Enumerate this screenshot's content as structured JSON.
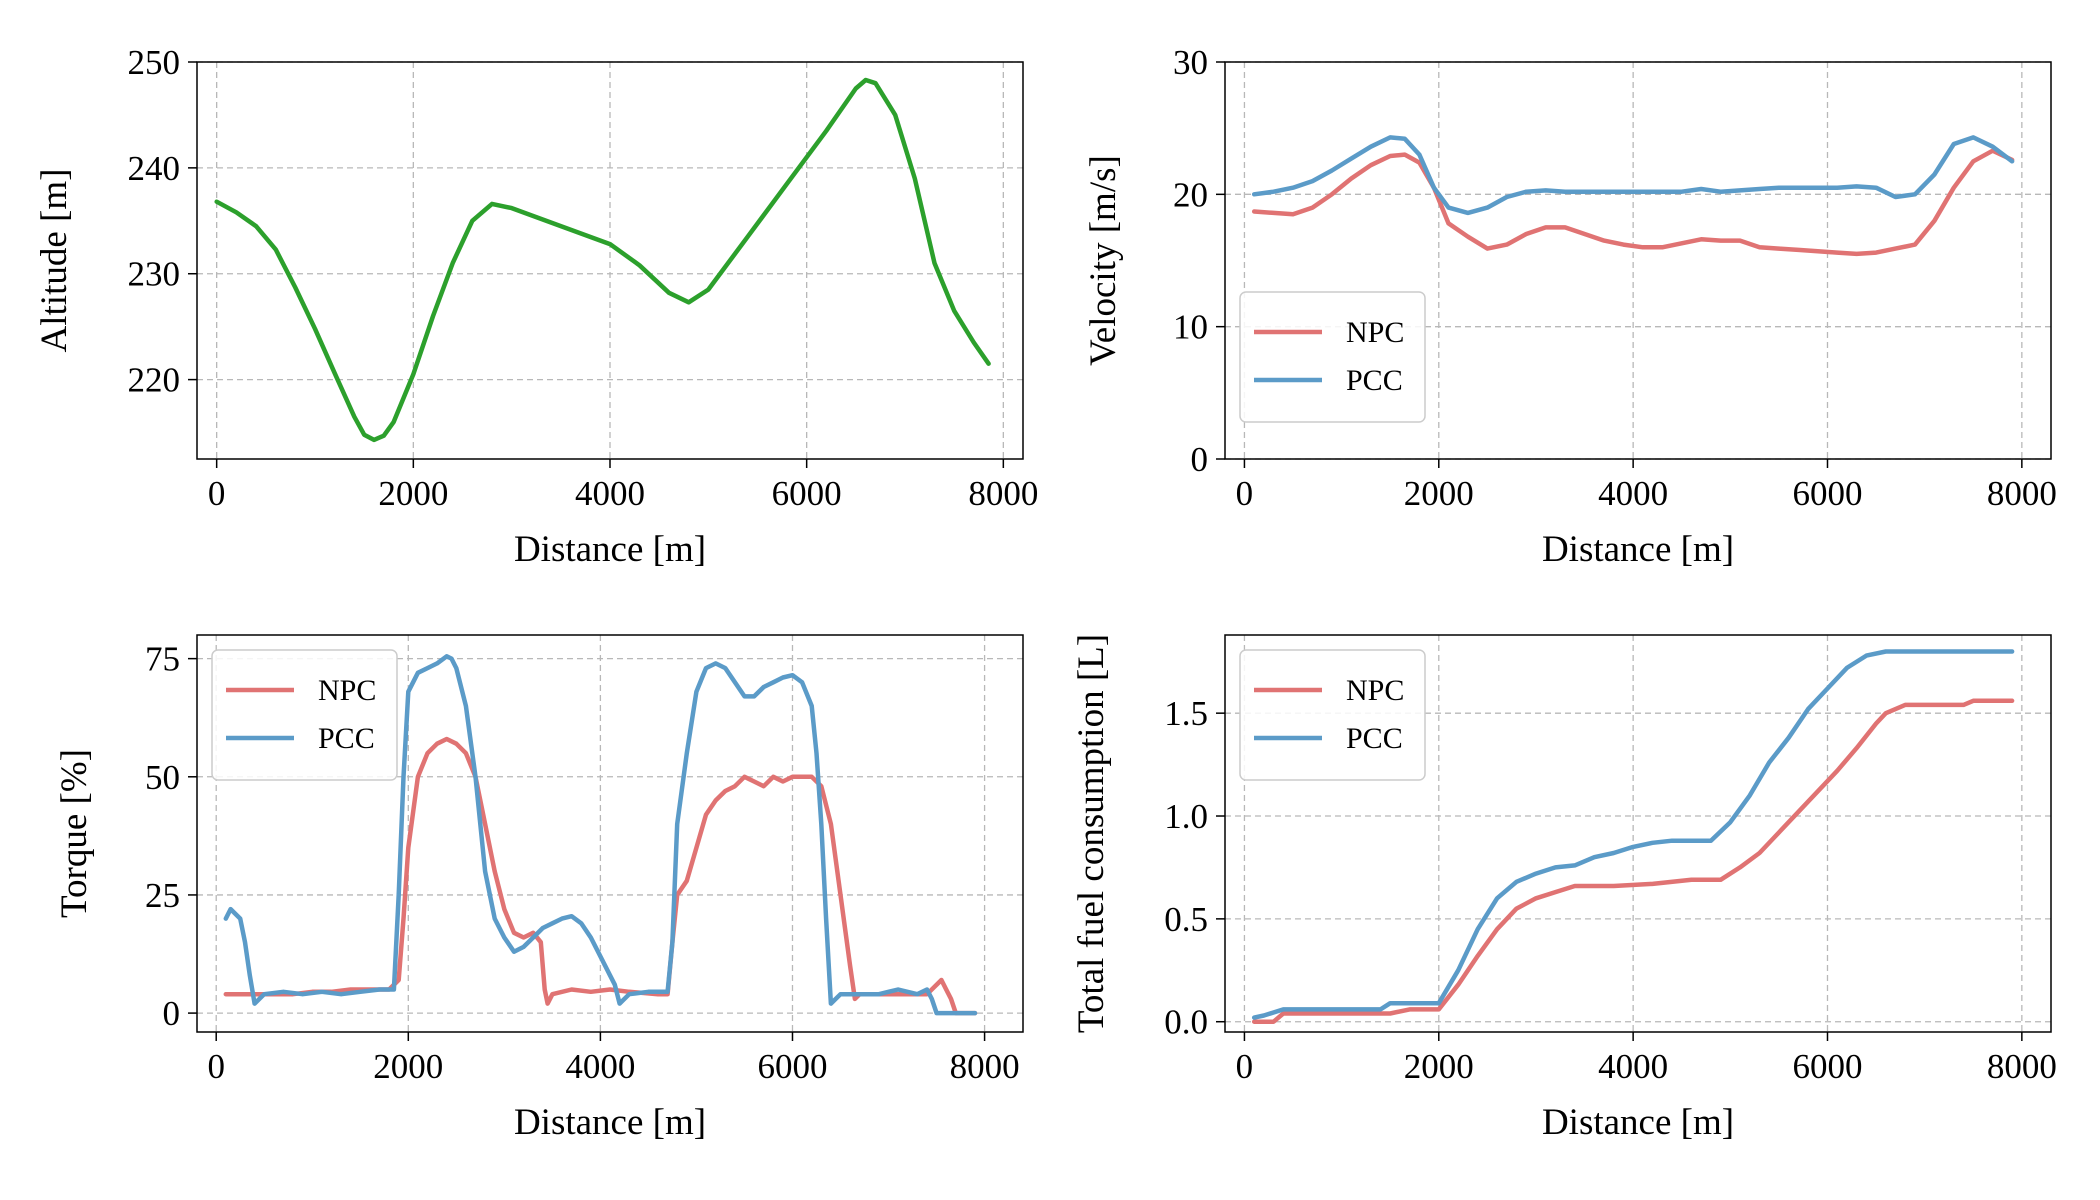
{
  "colors": {
    "altitude": "#2ca02c",
    "npc": "#e07373",
    "pcc": "#5b9bc8",
    "grid": "#b8b8b8"
  },
  "chart_data": [
    {
      "id": "altitude",
      "type": "line",
      "xlabel": "Distance [m]",
      "ylabel": "Altitude [m]",
      "xlim": [
        -200,
        8200
      ],
      "ylim": [
        212.5,
        250
      ],
      "xticks": [
        0,
        2000,
        4000,
        6000,
        8000
      ],
      "yticks": [
        220,
        230,
        240,
        250
      ],
      "xtick_labels": [
        "0",
        "2000",
        "4000",
        "6000",
        "8000"
      ],
      "ytick_labels": [
        "220",
        "230",
        "240",
        "250"
      ],
      "grid": true,
      "legend": null,
      "series": [
        {
          "name": "Altitude",
          "color": "#2ca02c",
          "x": [
            0,
            200,
            400,
            600,
            800,
            1000,
            1200,
            1400,
            1500,
            1600,
            1700,
            1800,
            2000,
            2200,
            2400,
            2600,
            2800,
            3000,
            3500,
            4000,
            4300,
            4600,
            4800,
            5000,
            5400,
            5800,
            6200,
            6500,
            6600,
            6700,
            6900,
            7100,
            7300,
            7500,
            7700,
            7850
          ],
          "y": [
            236.8,
            235.8,
            234.5,
            232.3,
            228.7,
            224.8,
            220.6,
            216.5,
            214.8,
            214.3,
            214.7,
            216.0,
            220.5,
            226.0,
            231.0,
            235.0,
            236.6,
            236.2,
            234.5,
            232.8,
            230.8,
            228.2,
            227.3,
            228.5,
            233.5,
            238.5,
            243.5,
            247.5,
            248.3,
            248.0,
            245.0,
            239.0,
            231.0,
            226.5,
            223.5,
            221.5
          ]
        }
      ]
    },
    {
      "id": "velocity",
      "type": "line",
      "xlabel": "Distance [m]",
      "ylabel": "Velocity [m/s]",
      "xlim": [
        -200,
        8300
      ],
      "ylim": [
        0,
        30
      ],
      "xticks": [
        0,
        2000,
        4000,
        6000,
        8000
      ],
      "yticks": [
        0,
        10,
        20,
        30
      ],
      "xtick_labels": [
        "0",
        "2000",
        "4000",
        "6000",
        "8000"
      ],
      "ytick_labels": [
        "0",
        "10",
        "20",
        "30"
      ],
      "grid": true,
      "legend": "lower-left",
      "series": [
        {
          "name": "NPC",
          "color": "#e07373",
          "x": [
            100,
            300,
            500,
            700,
            900,
            1100,
            1300,
            1500,
            1650,
            1800,
            1950,
            2100,
            2300,
            2500,
            2700,
            2900,
            3100,
            3300,
            3500,
            3700,
            3900,
            4100,
            4300,
            4500,
            4700,
            4900,
            5100,
            5300,
            5500,
            5700,
            5900,
            6100,
            6300,
            6500,
            6700,
            6900,
            7100,
            7300,
            7500,
            7700,
            7900
          ],
          "y": [
            18.7,
            18.6,
            18.5,
            19.0,
            20.0,
            21.2,
            22.2,
            22.9,
            23.0,
            22.4,
            20.5,
            17.8,
            16.8,
            15.9,
            16.2,
            17.0,
            17.5,
            17.5,
            17.0,
            16.5,
            16.2,
            16.0,
            16.0,
            16.3,
            16.6,
            16.5,
            16.5,
            16.0,
            15.9,
            15.8,
            15.7,
            15.6,
            15.5,
            15.6,
            15.9,
            16.2,
            18.0,
            20.5,
            22.5,
            23.3,
            22.6
          ]
        },
        {
          "name": "PCC",
          "color": "#5b9bc8",
          "x": [
            100,
            300,
            500,
            700,
            900,
            1100,
            1300,
            1500,
            1650,
            1800,
            1950,
            2100,
            2300,
            2500,
            2700,
            2900,
            3100,
            3300,
            3500,
            3700,
            3900,
            4100,
            4300,
            4500,
            4700,
            4900,
            5100,
            5300,
            5500,
            5700,
            5900,
            6100,
            6300,
            6500,
            6700,
            6900,
            7100,
            7300,
            7500,
            7700,
            7900
          ],
          "y": [
            20.0,
            20.2,
            20.5,
            21.0,
            21.8,
            22.7,
            23.6,
            24.3,
            24.2,
            23.0,
            20.5,
            19.0,
            18.6,
            19.0,
            19.8,
            20.2,
            20.3,
            20.2,
            20.2,
            20.2,
            20.2,
            20.2,
            20.2,
            20.2,
            20.4,
            20.2,
            20.3,
            20.4,
            20.5,
            20.5,
            20.5,
            20.5,
            20.6,
            20.5,
            19.8,
            20.0,
            21.5,
            23.8,
            24.3,
            23.6,
            22.5
          ]
        }
      ]
    },
    {
      "id": "torque",
      "type": "line",
      "xlabel": "Distance [m]",
      "ylabel": "Torque [%]",
      "xlim": [
        -200,
        8400
      ],
      "ylim": [
        -4,
        80
      ],
      "xticks": [
        0,
        2000,
        4000,
        6000,
        8000
      ],
      "yticks": [
        0,
        25,
        50,
        75
      ],
      "xtick_labels": [
        "0",
        "2000",
        "4000",
        "6000",
        "8000"
      ],
      "ytick_labels": [
        "0",
        "25",
        "50",
        "75"
      ],
      "grid": true,
      "legend": "upper-left",
      "series": [
        {
          "name": "NPC",
          "color": "#e07373",
          "x": [
            100,
            500,
            800,
            1000,
            1200,
            1400,
            1600,
            1800,
            1900,
            1950,
            2000,
            2100,
            2200,
            2300,
            2400,
            2500,
            2600,
            2700,
            2800,
            2900,
            3000,
            3100,
            3200,
            3300,
            3380,
            3420,
            3450,
            3500,
            3700,
            3900,
            4100,
            4300,
            4600,
            4700,
            4750,
            4800,
            4900,
            5000,
            5100,
            5200,
            5300,
            5400,
            5500,
            5600,
            5700,
            5800,
            5900,
            6000,
            6100,
            6200,
            6300,
            6400,
            6500,
            6600,
            6650,
            6700,
            6800,
            7000,
            7200,
            7400,
            7550,
            7600,
            7650,
            7700,
            7900
          ],
          "y": [
            4,
            4,
            4,
            4.5,
            4.5,
            5,
            5,
            5,
            7,
            20,
            35,
            50,
            55,
            57,
            58,
            57,
            55,
            50,
            40,
            30,
            22,
            17,
            16,
            17,
            15,
            5,
            2,
            4,
            5,
            4.5,
            5,
            4.5,
            4,
            4,
            15,
            25,
            28,
            35,
            42,
            45,
            47,
            48,
            50,
            49,
            48,
            50,
            49,
            50,
            50,
            50,
            48,
            40,
            25,
            10,
            3,
            4,
            4,
            4,
            4,
            4,
            7,
            5,
            3,
            0,
            0
          ]
        },
        {
          "name": "PCC",
          "color": "#5b9bc8",
          "x": [
            100,
            150,
            250,
            300,
            350,
            400,
            450,
            500,
            700,
            900,
            1100,
            1300,
            1500,
            1700,
            1850,
            1900,
            1950,
            2000,
            2100,
            2200,
            2300,
            2400,
            2450,
            2500,
            2600,
            2700,
            2800,
            2900,
            3000,
            3100,
            3200,
            3300,
            3400,
            3500,
            3600,
            3700,
            3800,
            3900,
            4000,
            4100,
            4150,
            4200,
            4300,
            4500,
            4700,
            4750,
            4800,
            4900,
            5000,
            5100,
            5200,
            5300,
            5400,
            5500,
            5600,
            5700,
            5800,
            5900,
            6000,
            6100,
            6200,
            6250,
            6300,
            6350,
            6400,
            6500,
            6700,
            6900,
            7100,
            7300,
            7400,
            7450,
            7500,
            7900
          ],
          "y": [
            20,
            22,
            20,
            15,
            8,
            2,
            3,
            4,
            4.5,
            4,
            4.5,
            4,
            4.5,
            5,
            5,
            25,
            50,
            68,
            72,
            73,
            74,
            75.5,
            75,
            73,
            65,
            50,
            30,
            20,
            16,
            13,
            14,
            16,
            18,
            19,
            20,
            20.5,
            19,
            16,
            12,
            8,
            6,
            2,
            4,
            4.5,
            4.5,
            15,
            40,
            55,
            68,
            73,
            74,
            73,
            70,
            67,
            67,
            69,
            70,
            71,
            71.5,
            70,
            65,
            55,
            40,
            20,
            2,
            4,
            4,
            4,
            5,
            4,
            5,
            3,
            0,
            0
          ]
        }
      ]
    },
    {
      "id": "fuel",
      "type": "line",
      "xlabel": "Distance [m]",
      "ylabel": "Total fuel consumption [L]",
      "xlim": [
        -200,
        8300
      ],
      "ylim": [
        -0.05,
        1.88
      ],
      "xticks": [
        0,
        2000,
        4000,
        6000,
        8000
      ],
      "yticks": [
        0.0,
        0.5,
        1.0,
        1.5
      ],
      "xtick_labels": [
        "0",
        "2000",
        "4000",
        "6000",
        "8000"
      ],
      "ytick_labels": [
        "0.0",
        "0.5",
        "1.0",
        "1.5"
      ],
      "grid": true,
      "legend": "upper-left",
      "series": [
        {
          "name": "NPC",
          "color": "#e07373",
          "x": [
            100,
            300,
            400,
            800,
            1200,
            1500,
            1700,
            2000,
            2200,
            2400,
            2600,
            2800,
            3000,
            3200,
            3400,
            3800,
            4200,
            4600,
            4900,
            5100,
            5300,
            5500,
            5700,
            5900,
            6100,
            6300,
            6500,
            6600,
            6800,
            7000,
            7200,
            7400,
            7500,
            7900
          ],
          "y": [
            0.0,
            0.0,
            0.04,
            0.04,
            0.04,
            0.04,
            0.06,
            0.06,
            0.18,
            0.32,
            0.45,
            0.55,
            0.6,
            0.63,
            0.66,
            0.66,
            0.67,
            0.69,
            0.69,
            0.75,
            0.82,
            0.92,
            1.02,
            1.12,
            1.22,
            1.33,
            1.45,
            1.5,
            1.54,
            1.54,
            1.54,
            1.54,
            1.56,
            1.56
          ]
        },
        {
          "name": "PCC",
          "color": "#5b9bc8",
          "x": [
            100,
            200,
            400,
            800,
            1200,
            1400,
            1500,
            2000,
            2200,
            2400,
            2600,
            2800,
            3000,
            3200,
            3400,
            3600,
            3800,
            4000,
            4200,
            4400,
            4800,
            5000,
            5200,
            5400,
            5600,
            5800,
            6000,
            6200,
            6400,
            6600,
            7000,
            7400,
            7900
          ],
          "y": [
            0.02,
            0.03,
            0.06,
            0.06,
            0.06,
            0.06,
            0.09,
            0.09,
            0.25,
            0.45,
            0.6,
            0.68,
            0.72,
            0.75,
            0.76,
            0.8,
            0.82,
            0.85,
            0.87,
            0.88,
            0.88,
            0.97,
            1.1,
            1.26,
            1.38,
            1.52,
            1.62,
            1.72,
            1.78,
            1.8,
            1.8,
            1.8,
            1.8
          ]
        }
      ]
    }
  ]
}
